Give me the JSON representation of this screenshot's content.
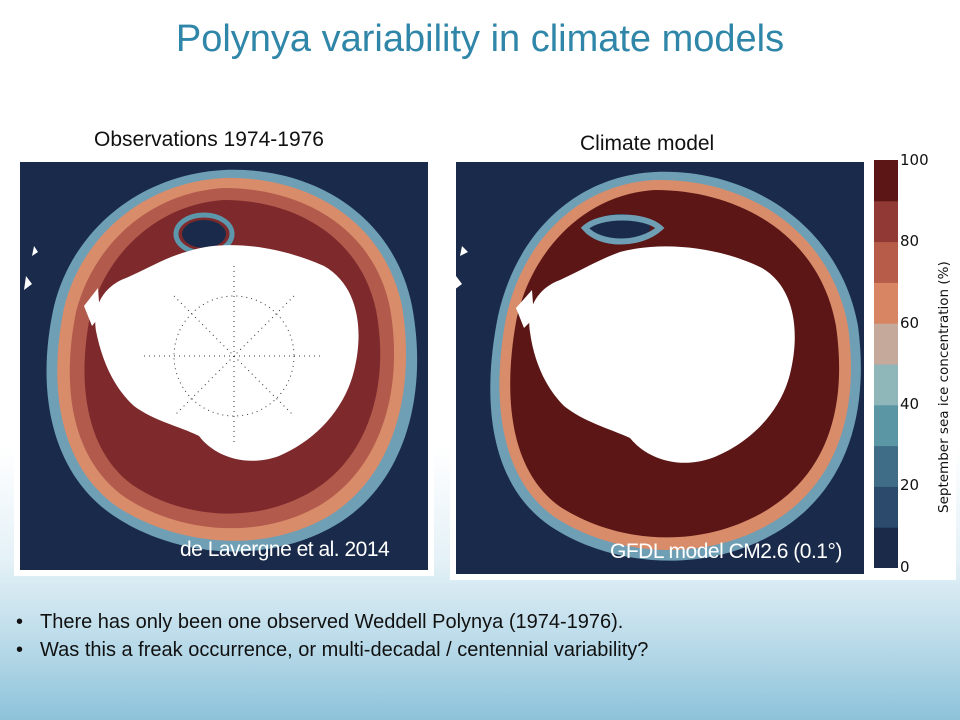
{
  "slide": {
    "title": "Polynya variability in climate models"
  },
  "panels": {
    "left": {
      "title": "Observations 1974-1976",
      "caption": "de Lavergne et al. 2014"
    },
    "right": {
      "title": "Climate model",
      "caption": "GFDL model CM2.6 (0.1°)"
    }
  },
  "colorbar": {
    "label": "September sea ice concentration (%)",
    "ticks": [
      "100",
      "80",
      "60",
      "40",
      "20",
      "0"
    ],
    "colors": [
      "#1c2a4a",
      "#2c4a6b",
      "#3f6d88",
      "#5a96a4",
      "#8fb6b8",
      "#c5a99a",
      "#d78563",
      "#b85c4a",
      "#913a35",
      "#5c1616"
    ]
  },
  "bullets": [
    "There has only been one observed Weddell Polynya (1974-1976).",
    "Was this a freak occurrence, or multi-decadal / centennial variability?"
  ],
  "bullet_marker": "•"
}
